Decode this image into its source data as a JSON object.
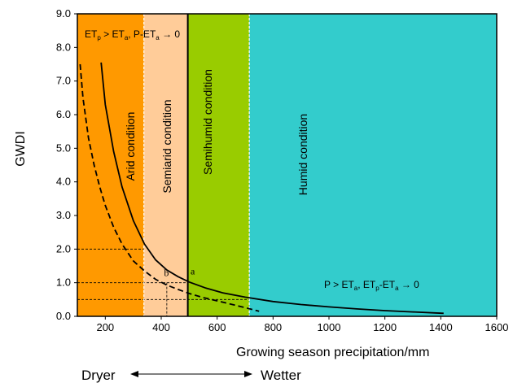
{
  "chart_data": {
    "type": "line",
    "title": "",
    "xlabel": "Growing season precipitation/mm",
    "ylabel": "GWDI",
    "xlim": [
      100,
      1600
    ],
    "ylim": [
      0,
      9
    ],
    "xticks": [
      200,
      400,
      600,
      800,
      1000,
      1200,
      1400,
      1600
    ],
    "yticks": [
      "0.0",
      "1.0",
      "2.0",
      "3.0",
      "4.0",
      "5.0",
      "6.0",
      "7.0",
      "8.0",
      "9.0"
    ],
    "grid": false,
    "legend": "none",
    "regions": [
      {
        "label": "Arid condition",
        "x0": 100,
        "x1": 338,
        "color": "#FF9900"
      },
      {
        "label": "Semiarid condition",
        "x0": 338,
        "x1": 495,
        "color": "#FFCC99"
      },
      {
        "label": "Semihumid condition",
        "x0": 495,
        "x1": 715,
        "color": "#99CC00"
      },
      {
        "label": "Humid condition",
        "x0": 715,
        "x1": 1600,
        "color": "#33CCCC"
      }
    ],
    "series": [
      {
        "style": "solid",
        "x": [
          185,
          200,
          230,
          260,
          300,
          340,
          380,
          420,
          460,
          500,
          560,
          620,
          700,
          800,
          900,
          1000,
          1100,
          1200,
          1300,
          1410
        ],
        "y": [
          7.55,
          6.3,
          4.9,
          3.85,
          2.85,
          2.15,
          1.68,
          1.38,
          1.18,
          1.02,
          0.84,
          0.7,
          0.57,
          0.44,
          0.35,
          0.28,
          0.22,
          0.17,
          0.13,
          0.09
        ]
      },
      {
        "style": "dashed",
        "x": [
          110,
          120,
          140,
          160,
          180,
          200,
          230,
          260,
          300,
          340,
          380,
          420,
          460,
          500,
          550,
          600,
          650,
          700,
          750
        ],
        "y": [
          7.5,
          6.5,
          5.3,
          4.5,
          3.85,
          3.3,
          2.65,
          2.15,
          1.65,
          1.35,
          1.1,
          0.93,
          0.8,
          0.68,
          0.56,
          0.46,
          0.36,
          0.26,
          0.15
        ]
      }
    ],
    "reference_lines": [
      {
        "y": 2.0,
        "x_end": 338
      },
      {
        "y": 1.0,
        "x_end": 495
      },
      {
        "y": 0.5,
        "x_end": 715
      },
      {
        "x": 420,
        "y_end": 1.0
      }
    ],
    "point_labels": [
      {
        "text": "a",
        "x": 505,
        "y": 1.25
      },
      {
        "text": "b",
        "x": 410,
        "y": 1.2
      }
    ],
    "annotations": {
      "top_left": {
        "t1": "ET",
        "s1": "p",
        "t2": " > ET",
        "s2": "a",
        "t3": ", P-ET",
        "s3": "a",
        "t4": " → 0"
      },
      "bottom_right": {
        "t1": "P > ET",
        "s1": "a",
        "t2": ", ET",
        "s2": "p",
        "t3": "-ET",
        "s3": "a",
        "t4": " → 0"
      }
    },
    "direction": {
      "left": "Dryer",
      "right": "Wetter"
    }
  }
}
